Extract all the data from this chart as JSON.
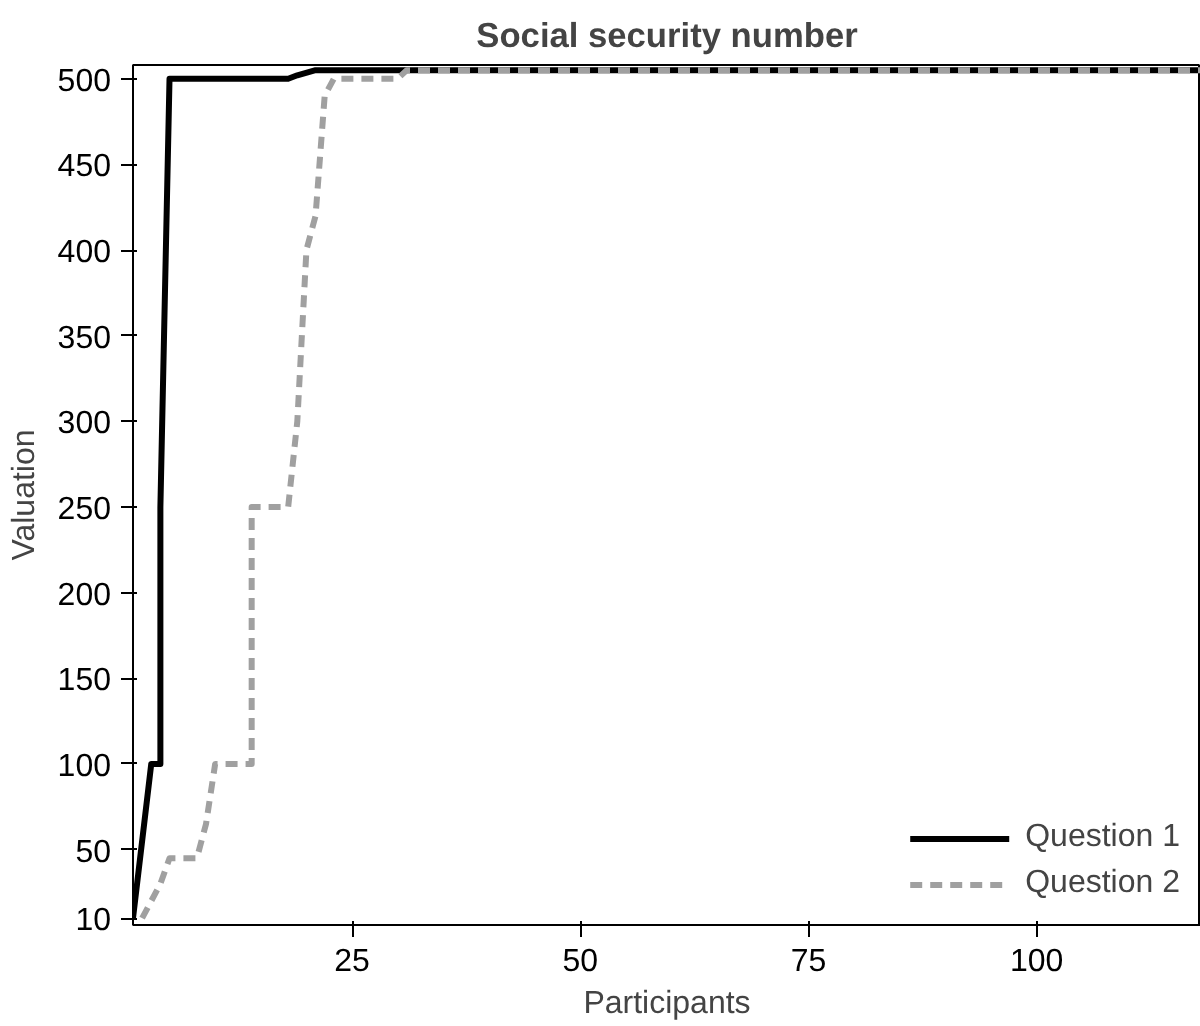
{
  "chart_data": {
    "type": "line",
    "title": "Social security number",
    "xlabel": "Participants",
    "ylabel": "Valuation",
    "xlim": [
      1,
      118
    ],
    "ylim": [
      6,
      508
    ],
    "xticks": [
      25,
      50,
      75,
      100
    ],
    "yticks": [
      10,
      50,
      100,
      150,
      200,
      250,
      300,
      350,
      400,
      450,
      500
    ],
    "grid": false,
    "legend": "bottom right",
    "series": [
      {
        "name": "Question 1",
        "color": "#000000",
        "line_style": "solid",
        "x": [
          1,
          3,
          4,
          4,
          5,
          18,
          19,
          21,
          118
        ],
        "values": [
          10,
          100,
          100,
          250,
          500,
          500,
          502,
          505,
          505
        ]
      },
      {
        "name": "Question 2",
        "color": "#a0a0a0",
        "line_style": "dashed",
        "x": [
          2,
          4,
          5,
          8,
          9,
          10,
          14,
          14,
          18,
          19,
          20,
          21,
          22,
          23,
          30,
          31,
          118
        ],
        "values": [
          10,
          30,
          45,
          45,
          65,
          100,
          100,
          250,
          250,
          300,
          400,
          420,
          490,
          500,
          500,
          505,
          505
        ]
      }
    ]
  }
}
